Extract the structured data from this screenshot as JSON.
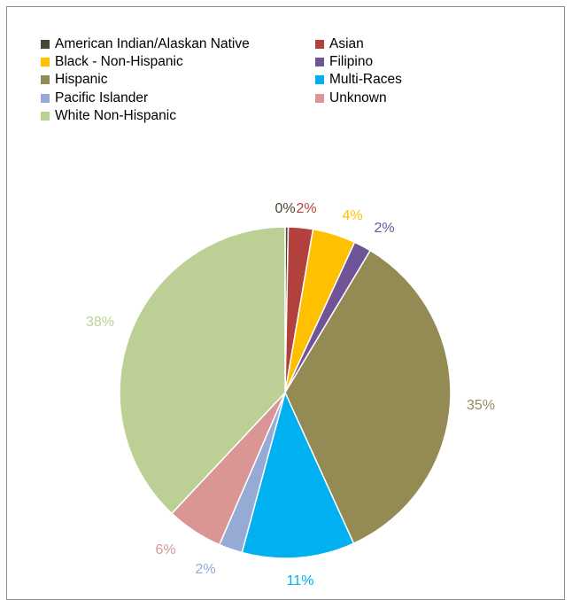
{
  "chart_data": {
    "type": "pie",
    "slices": [
      {
        "label": "American Indian/Alaskan Native",
        "value": 0.3,
        "display": "0%",
        "color": "#4a4530"
      },
      {
        "label": "Asian",
        "value": 2.4,
        "display": "2%",
        "color": "#b2403d"
      },
      {
        "label": "Black - Non-Hispanic",
        "value": 4.2,
        "display": "4%",
        "color": "#ffc000"
      },
      {
        "label": "Filipino",
        "value": 1.7,
        "display": "2%",
        "color": "#6f5597"
      },
      {
        "label": "Hispanic",
        "value": 34.6,
        "display": "35%",
        "color": "#948a54"
      },
      {
        "label": "Multi-Races",
        "value": 11.0,
        "display": "11%",
        "color": "#00b0f0"
      },
      {
        "label": "Pacific Islander",
        "value": 2.3,
        "display": "2%",
        "color": "#95abd6"
      },
      {
        "label": "Unknown",
        "value": 5.5,
        "display": "6%",
        "color": "#d99694"
      },
      {
        "label": "White Non-Hispanic",
        "value": 38.0,
        "display": "38%",
        "color": "#bcd095"
      }
    ],
    "legend_position": "top",
    "title": ""
  }
}
